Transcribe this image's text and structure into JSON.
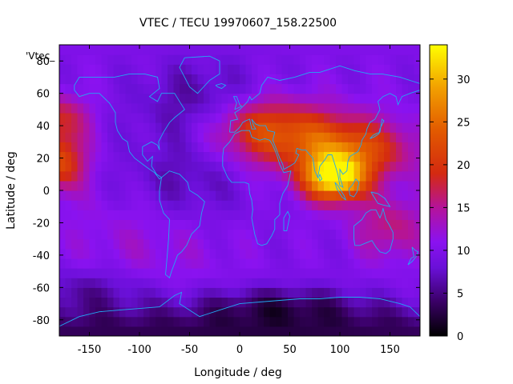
{
  "chart_data": {
    "type": "heatmap",
    "title": "VTEC / TECU 19970607_158.22500",
    "xlabel": "Longitude / deg",
    "ylabel": "Latitude / deg",
    "series_label": "'Vtec_",
    "xlim": [
      -180,
      180
    ],
    "ylim": [
      -90,
      90
    ],
    "xticks": [
      -150,
      -100,
      -50,
      0,
      50,
      100,
      150
    ],
    "yticks": [
      -80,
      -60,
      -40,
      -20,
      0,
      20,
      40,
      60,
      80
    ],
    "colorbar": {
      "range": [
        0,
        34
      ],
      "ticks": [
        0,
        5,
        10,
        15,
        20,
        25,
        30
      ],
      "palette": [
        {
          "v": 0,
          "color": "#000000"
        },
        {
          "v": 4,
          "color": "#3a0066"
        },
        {
          "v": 8,
          "color": "#6a10d8"
        },
        {
          "v": 11,
          "color": "#8a12f0"
        },
        {
          "v": 15,
          "color": "#b5139a"
        },
        {
          "v": 19,
          "color": "#d42a10"
        },
        {
          "v": 24,
          "color": "#e25a00"
        },
        {
          "v": 29,
          "color": "#f2a000"
        },
        {
          "v": 34,
          "color": "#ffff00"
        }
      ]
    },
    "features": [
      {
        "name": "equatorial-maximum",
        "lon": 95,
        "lat": 10,
        "value": 33
      },
      {
        "name": "asia-crest",
        "lon": 40,
        "lat": 35,
        "value": 21
      },
      {
        "name": "pacific-west-crest",
        "lon": -170,
        "lat": 20,
        "value": 22
      },
      {
        "name": "pacific-north-crest",
        "lon": -170,
        "lat": 45,
        "value": 18
      },
      {
        "name": "australia-enhancement",
        "lon": 150,
        "lat": -20,
        "value": 17
      }
    ],
    "background_value": 10,
    "coastline_color": "#22a8f2"
  }
}
